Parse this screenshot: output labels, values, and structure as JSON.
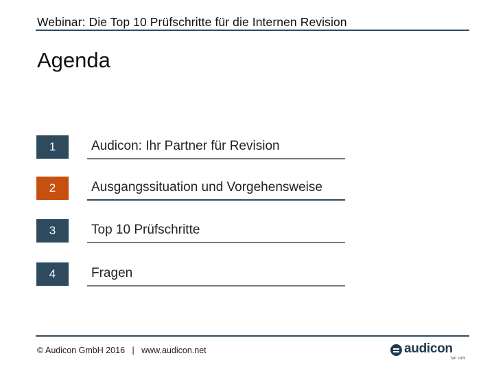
{
  "header": {
    "title": "Webinar: Die Top 10 Prüfschritte für die Internen Revision"
  },
  "page": {
    "title": "Agenda"
  },
  "agenda": {
    "items": [
      {
        "number": "1",
        "label": "Audicon: Ihr Partner für Revision",
        "color": "#2e4a5f"
      },
      {
        "number": "2",
        "label": "Ausgangssituation und Vorgehensweise",
        "color": "#c8500f",
        "active": true
      },
      {
        "number": "3",
        "label": "Top 10 Prüfschritte",
        "color": "#2e4a5f"
      },
      {
        "number": "4",
        "label": "Fragen",
        "color": "#2e4a5f"
      }
    ]
  },
  "footer": {
    "copyright": "© Audicon GmbH 2016   |   www.audicon.net"
  },
  "logo": {
    "wordmark": "audicon",
    "tagline": "fair zahl",
    "color": "#1f3a4f"
  }
}
